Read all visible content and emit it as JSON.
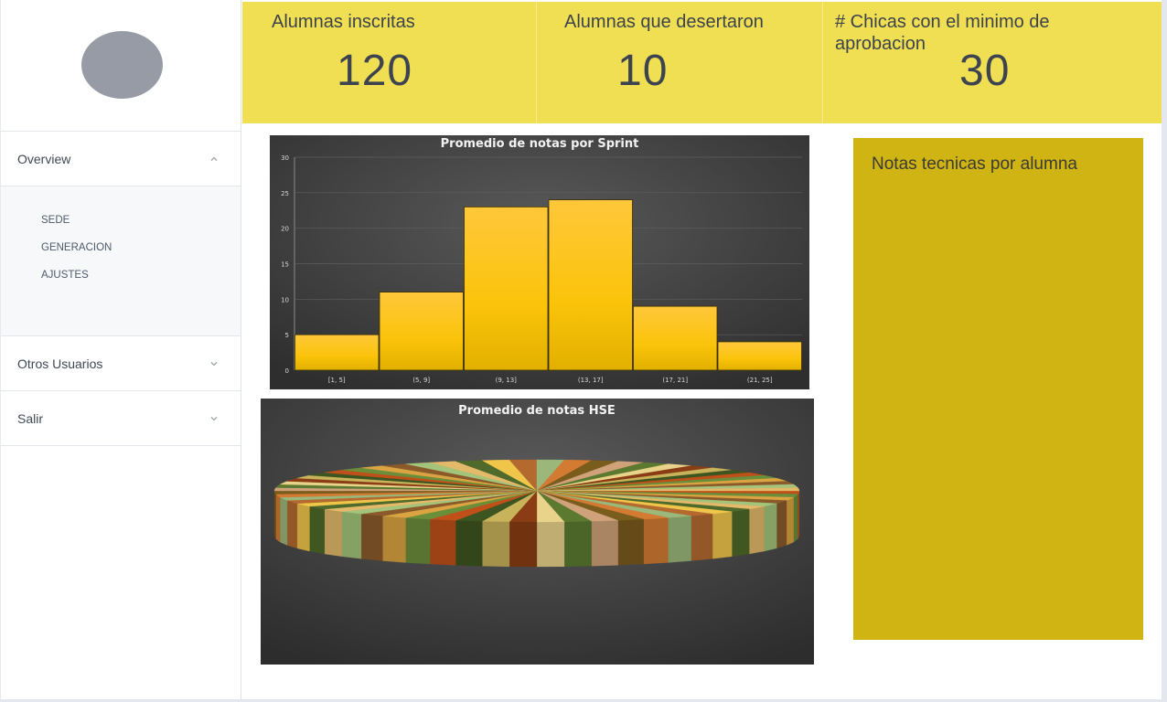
{
  "sidebar": {
    "overview_label": "Overview",
    "sub_items": [
      "SEDE",
      "GENERACION",
      "AJUSTES"
    ],
    "otros_label": "Otros Usuarios",
    "salir_label": "Salir"
  },
  "stats": [
    {
      "title": "Alumnas inscritas",
      "value": "120"
    },
    {
      "title": "Alumnas que desertaron",
      "value": "10"
    },
    {
      "title": "# Chicas con el minimo de aprobacion",
      "value": "30"
    }
  ],
  "right_panel": {
    "title": "Notas tecnicas por alumna"
  },
  "colors": {
    "header_yellow": "#f0df52",
    "panel_gold": "#cfb414",
    "bar_yellow": "#f9c21b",
    "chart_bg": "#3a3a3a"
  },
  "chart_data": [
    {
      "type": "bar",
      "title": "Promedio de notas por Sprint",
      "categories": [
        "[1, 5]",
        "(5, 9]",
        "(9, 13]",
        "(13, 17]",
        "(17, 21]",
        "(21, 25]"
      ],
      "values": [
        5,
        11,
        23,
        24,
        9,
        4
      ],
      "y_ticks": [
        0,
        5,
        10,
        15,
        20,
        25,
        30
      ],
      "ylim": [
        0,
        30
      ],
      "xlabel": "",
      "ylabel": ""
    },
    {
      "type": "pie",
      "title": "Promedio de notas HSE",
      "slices": 60,
      "labels_shown": false
    }
  ]
}
